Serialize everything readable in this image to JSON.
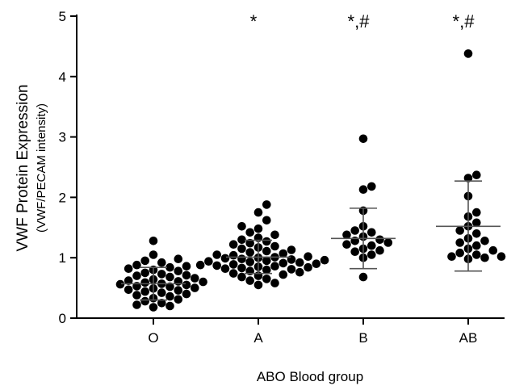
{
  "chart_data": {
    "type": "scatter",
    "subtype": "dot-plot with mean and SD error bars",
    "categories": [
      "O",
      "A",
      "B",
      "AB"
    ],
    "ylabel": "VWF Protein Expression",
    "ylabel_sub": "(VWF/PECAM intensity)",
    "xlabel": "ABO Blood group",
    "ylim": [
      0,
      5
    ],
    "yticks": [
      "0",
      "1",
      "2",
      "3",
      "4",
      "5"
    ],
    "grid": false,
    "point_color": "#000000",
    "groups": [
      {
        "category": "O",
        "annotation": "",
        "mean": 0.57,
        "sd_low": 0.3,
        "sd_high": 0.84,
        "points": [
          1.28,
          1.05,
          0.98,
          0.95,
          0.92,
          0.88,
          0.86,
          0.84,
          0.82,
          0.8,
          0.78,
          0.75,
          0.73,
          0.71,
          0.7,
          0.68,
          0.66,
          0.64,
          0.62,
          0.61,
          0.6,
          0.59,
          0.57,
          0.56,
          0.55,
          0.53,
          0.52,
          0.5,
          0.49,
          0.47,
          0.46,
          0.44,
          0.42,
          0.4,
          0.38,
          0.36,
          0.33,
          0.31,
          0.28,
          0.25,
          0.22,
          0.2,
          0.18
        ]
      },
      {
        "category": "A",
        "annotation": "*",
        "mean": 1.01,
        "sd_low": 0.74,
        "sd_high": 1.29,
        "points": [
          1.88,
          1.75,
          1.62,
          1.52,
          1.48,
          1.42,
          1.38,
          1.33,
          1.3,
          1.27,
          1.24,
          1.22,
          1.19,
          1.17,
          1.15,
          1.13,
          1.11,
          1.09,
          1.07,
          1.05,
          1.04,
          1.02,
          1.01,
          1.0,
          0.99,
          0.98,
          0.97,
          0.96,
          0.95,
          0.94,
          0.93,
          0.92,
          0.91,
          0.9,
          0.89,
          0.88,
          0.87,
          0.86,
          0.85,
          0.84,
          0.83,
          0.82,
          0.81,
          0.8,
          0.78,
          0.76,
          0.74,
          0.72,
          0.7,
          0.68,
          0.65,
          0.62,
          0.58,
          0.55
        ]
      },
      {
        "category": "B",
        "annotation": "*,#",
        "mean": 1.32,
        "sd_low": 0.82,
        "sd_high": 1.82,
        "points": [
          2.97,
          2.18,
          2.13,
          1.78,
          1.52,
          1.45,
          1.42,
          1.38,
          1.35,
          1.3,
          1.28,
          1.25,
          1.22,
          1.2,
          1.15,
          1.12,
          1.1,
          1.05,
          1.0,
          0.68
        ]
      },
      {
        "category": "AB",
        "annotation": "*,#",
        "mean": 1.52,
        "sd_low": 0.78,
        "sd_high": 2.27,
        "points": [
          4.38,
          2.37,
          2.32,
          2.02,
          1.75,
          1.68,
          1.58,
          1.52,
          1.45,
          1.4,
          1.32,
          1.28,
          1.25,
          1.2,
          1.15,
          1.12,
          1.08,
          1.02,
          1.0,
          0.98,
          1.02,
          1.05
        ]
      }
    ]
  }
}
